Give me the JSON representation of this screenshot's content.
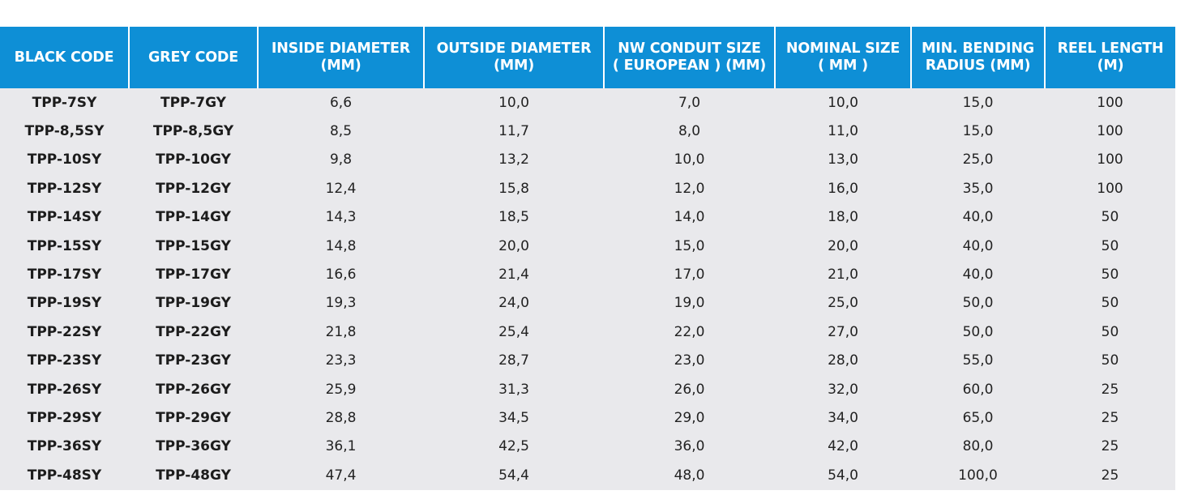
{
  "table": {
    "headers": [
      "BLACK CODE",
      "GREY CODE",
      "INSIDE DIAMETER\n(MM)",
      "OUTSIDE DIAMETER\n(MM)",
      "NW CONDUIT SIZE\n( EUROPEAN ) (MM)",
      "NOMINAL SIZE\n( MM )",
      "MIN. BENDING\nRADIUS (MM)",
      "REEL LENGTH\n(M)"
    ],
    "rows": [
      [
        "TPP-7SY",
        "TPP-7GY",
        "6,6",
        "10,0",
        "7,0",
        "10,0",
        "15,0",
        "100"
      ],
      [
        "TPP-8,5SY",
        "TPP-8,5GY",
        "8,5",
        "11,7",
        "8,0",
        "11,0",
        "15,0",
        "100"
      ],
      [
        "TPP-10SY",
        "TPP-10GY",
        "9,8",
        "13,2",
        "10,0",
        "13,0",
        "25,0",
        "100"
      ],
      [
        "TPP-12SY",
        "TPP-12GY",
        "12,4",
        "15,8",
        "12,0",
        "16,0",
        "35,0",
        "100"
      ],
      [
        "TPP-14SY",
        "TPP-14GY",
        "14,3",
        "18,5",
        "14,0",
        "18,0",
        "40,0",
        "50"
      ],
      [
        "TPP-15SY",
        "TPP-15GY",
        "14,8",
        "20,0",
        "15,0",
        "20,0",
        "40,0",
        "50"
      ],
      [
        "TPP-17SY",
        "TPP-17GY",
        "16,6",
        "21,4",
        "17,0",
        "21,0",
        "40,0",
        "50"
      ],
      [
        "TPP-19SY",
        "TPP-19GY",
        "19,3",
        "24,0",
        "19,0",
        "25,0",
        "50,0",
        "50"
      ],
      [
        "TPP-22SY",
        "TPP-22GY",
        "21,8",
        "25,4",
        "22,0",
        "27,0",
        "50,0",
        "50"
      ],
      [
        "TPP-23SY",
        "TPP-23GY",
        "23,3",
        "28,7",
        "23,0",
        "28,0",
        "55,0",
        "50"
      ],
      [
        "TPP-26SY",
        "TPP-26GY",
        "25,9",
        "31,3",
        "26,0",
        "32,0",
        "60,0",
        "25"
      ],
      [
        "TPP-29SY",
        "TPP-29GY",
        "28,8",
        "34,5",
        "29,0",
        "34,0",
        "65,0",
        "25"
      ],
      [
        "TPP-36SY",
        "TPP-36GY",
        "36,1",
        "42,5",
        "36,0",
        "42,0",
        "80,0",
        "25"
      ],
      [
        "TPP-48SY",
        "TPP-48GY",
        "47,4",
        "54,4",
        "48,0",
        "54,0",
        "100,0",
        "25"
      ]
    ]
  },
  "colors": {
    "header_bg": "#0e8fd6",
    "header_text": "#ffffff",
    "body_bg": "#e9e9ec",
    "body_text": "#222222"
  }
}
